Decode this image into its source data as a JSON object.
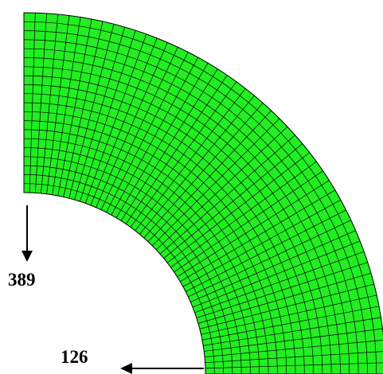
{
  "figure": {
    "mesh": {
      "shape": "quarter-annulus",
      "fill_color": "#22ee22",
      "line_color": "#000000",
      "radial_divisions": 20,
      "circumferential_divisions": 50
    },
    "loads": [
      {
        "label": "389",
        "direction": "down"
      },
      {
        "label": "126",
        "direction": "left"
      }
    ]
  }
}
